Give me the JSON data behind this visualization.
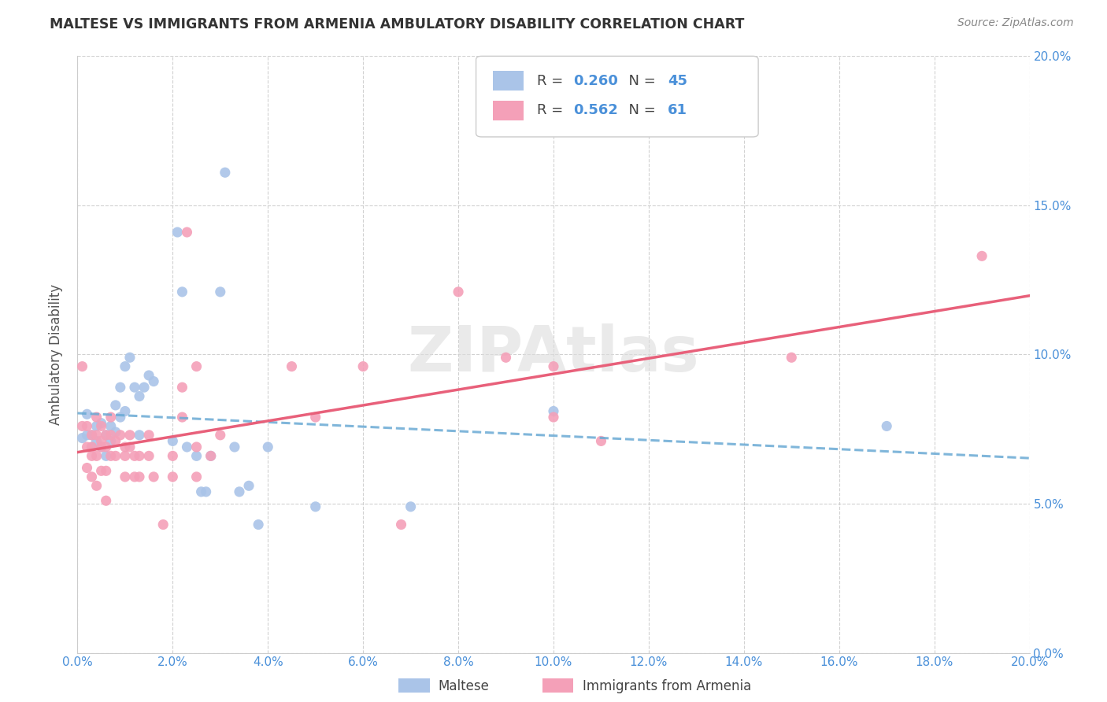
{
  "title": "MALTESE VS IMMIGRANTS FROM ARMENIA AMBULATORY DISABILITY CORRELATION CHART",
  "source": "Source: ZipAtlas.com",
  "ylabel": "Ambulatory Disability",
  "x_min": 0.0,
  "x_max": 0.2,
  "y_min": 0.0,
  "y_max": 0.2,
  "x_ticks": [
    0.0,
    0.02,
    0.04,
    0.06,
    0.08,
    0.1,
    0.12,
    0.14,
    0.16,
    0.18,
    0.2
  ],
  "y_ticks": [
    0.0,
    0.05,
    0.1,
    0.15,
    0.2
  ],
  "watermark": "ZIPAtlas",
  "maltese_color": "#aac4e8",
  "armenia_color": "#f4a0b8",
  "maltese_line_color": "#6aaad4",
  "armenia_line_color": "#e8607a",
  "legend_r1": "0.260",
  "legend_n1": "45",
  "legend_r2": "0.562",
  "legend_n2": "61",
  "maltese_scatter": [
    [
      0.001,
      0.072
    ],
    [
      0.002,
      0.073
    ],
    [
      0.002,
      0.08
    ],
    [
      0.003,
      0.073
    ],
    [
      0.003,
      0.069
    ],
    [
      0.004,
      0.071
    ],
    [
      0.004,
      0.076
    ],
    [
      0.005,
      0.069
    ],
    [
      0.005,
      0.077
    ],
    [
      0.006,
      0.073
    ],
    [
      0.006,
      0.066
    ],
    [
      0.007,
      0.076
    ],
    [
      0.007,
      0.071
    ],
    [
      0.008,
      0.083
    ],
    [
      0.008,
      0.074
    ],
    [
      0.009,
      0.089
    ],
    [
      0.009,
      0.079
    ],
    [
      0.01,
      0.081
    ],
    [
      0.01,
      0.096
    ],
    [
      0.011,
      0.099
    ],
    [
      0.012,
      0.089
    ],
    [
      0.013,
      0.086
    ],
    [
      0.013,
      0.073
    ],
    [
      0.014,
      0.089
    ],
    [
      0.015,
      0.093
    ],
    [
      0.016,
      0.091
    ],
    [
      0.02,
      0.071
    ],
    [
      0.021,
      0.141
    ],
    [
      0.022,
      0.121
    ],
    [
      0.023,
      0.069
    ],
    [
      0.025,
      0.066
    ],
    [
      0.026,
      0.054
    ],
    [
      0.027,
      0.054
    ],
    [
      0.028,
      0.066
    ],
    [
      0.03,
      0.121
    ],
    [
      0.031,
      0.161
    ],
    [
      0.033,
      0.069
    ],
    [
      0.034,
      0.054
    ],
    [
      0.036,
      0.056
    ],
    [
      0.038,
      0.043
    ],
    [
      0.04,
      0.069
    ],
    [
      0.05,
      0.049
    ],
    [
      0.07,
      0.049
    ],
    [
      0.1,
      0.081
    ],
    [
      0.17,
      0.076
    ]
  ],
  "armenia_scatter": [
    [
      0.001,
      0.096
    ],
    [
      0.001,
      0.076
    ],
    [
      0.002,
      0.069
    ],
    [
      0.002,
      0.076
    ],
    [
      0.002,
      0.062
    ],
    [
      0.003,
      0.073
    ],
    [
      0.003,
      0.069
    ],
    [
      0.003,
      0.066
    ],
    [
      0.003,
      0.059
    ],
    [
      0.004,
      0.079
    ],
    [
      0.004,
      0.073
    ],
    [
      0.004,
      0.066
    ],
    [
      0.004,
      0.056
    ],
    [
      0.005,
      0.076
    ],
    [
      0.005,
      0.071
    ],
    [
      0.005,
      0.069
    ],
    [
      0.005,
      0.061
    ],
    [
      0.006,
      0.073
    ],
    [
      0.006,
      0.069
    ],
    [
      0.006,
      0.061
    ],
    [
      0.006,
      0.051
    ],
    [
      0.007,
      0.079
    ],
    [
      0.007,
      0.073
    ],
    [
      0.007,
      0.066
    ],
    [
      0.008,
      0.071
    ],
    [
      0.008,
      0.066
    ],
    [
      0.009,
      0.073
    ],
    [
      0.01,
      0.069
    ],
    [
      0.01,
      0.066
    ],
    [
      0.01,
      0.059
    ],
    [
      0.011,
      0.073
    ],
    [
      0.011,
      0.069
    ],
    [
      0.012,
      0.066
    ],
    [
      0.012,
      0.059
    ],
    [
      0.013,
      0.066
    ],
    [
      0.013,
      0.059
    ],
    [
      0.015,
      0.073
    ],
    [
      0.015,
      0.066
    ],
    [
      0.016,
      0.059
    ],
    [
      0.018,
      0.043
    ],
    [
      0.02,
      0.066
    ],
    [
      0.02,
      0.059
    ],
    [
      0.022,
      0.089
    ],
    [
      0.022,
      0.079
    ],
    [
      0.023,
      0.141
    ],
    [
      0.025,
      0.096
    ],
    [
      0.025,
      0.069
    ],
    [
      0.025,
      0.059
    ],
    [
      0.028,
      0.066
    ],
    [
      0.03,
      0.073
    ],
    [
      0.045,
      0.096
    ],
    [
      0.05,
      0.079
    ],
    [
      0.06,
      0.096
    ],
    [
      0.068,
      0.043
    ],
    [
      0.08,
      0.121
    ],
    [
      0.09,
      0.099
    ],
    [
      0.1,
      0.096
    ],
    [
      0.1,
      0.079
    ],
    [
      0.11,
      0.071
    ],
    [
      0.15,
      0.099
    ],
    [
      0.19,
      0.133
    ]
  ]
}
